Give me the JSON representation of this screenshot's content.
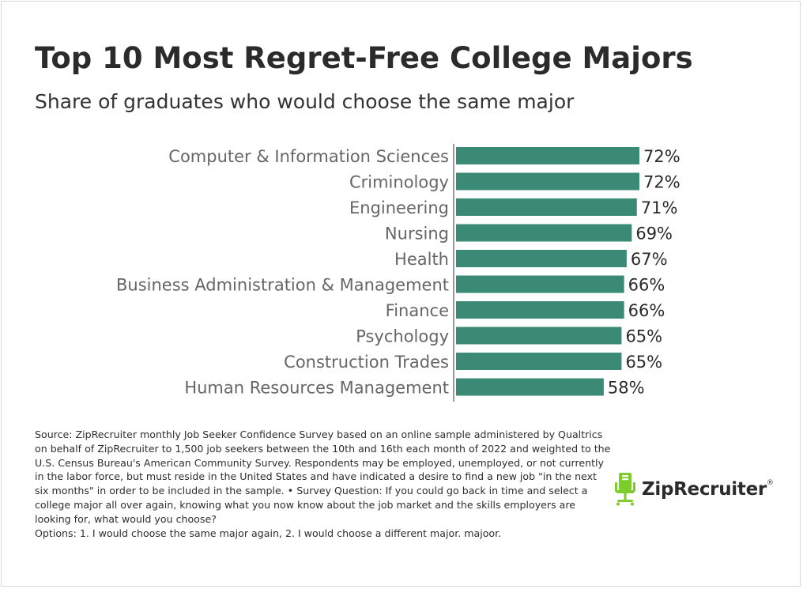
{
  "chart_data": {
    "type": "bar",
    "orientation": "horizontal",
    "title": "Top 10 Most Regret-Free College Majors",
    "subtitle": "Share of graduates who would choose the same major",
    "categories": [
      "Computer & Information Sciences",
      "Criminology",
      "Engineering",
      "Nursing",
      "Health",
      "Business Administration & Management",
      "Finance",
      "Psychology",
      "Construction Trades",
      "Human Resources Management"
    ],
    "values": [
      72,
      72,
      71,
      69,
      67,
      66,
      66,
      65,
      65,
      58
    ],
    "value_labels": [
      "72%",
      "72%",
      "71%",
      "69%",
      "67%",
      "66%",
      "66%",
      "65%",
      "65%",
      "58%"
    ],
    "bar_color": "#3b8a76",
    "xlim": [
      0,
      72
    ],
    "grid": false,
    "legend": "none"
  },
  "source": {
    "lines": [
      "Source: ZipRecruiter monthly Job Seeker Confidence Survey based on an online sample administered by Qualtrics on behalf of ZipRecruiter to 1,500 job seekers between the 10th and 16th each month of 2022 and weighted to the U.S. Census Bureau's American Community Survey. Respondents may be employed, unemployed, or not currently in the labor force, but must reside in the United States and have indicated a desire to find a new job \"in the next six months\" in order to be included in the sample. • Survey Question: If you could go back in time and select a college major all over again, knowing what you now know about the job market and the skills employers are looking for, what would you choose?",
      "Options: 1. I would choose the same major again, 2. I would choose a different major.   majoor."
    ]
  },
  "logo": {
    "text": "ZipRecruiter",
    "reg_mark": "®",
    "icon": "chair-icon",
    "icon_color": "#7ccd2a"
  },
  "colors": {
    "title": "#2b2b2b",
    "label": "#666666",
    "axis": "#999999"
  }
}
